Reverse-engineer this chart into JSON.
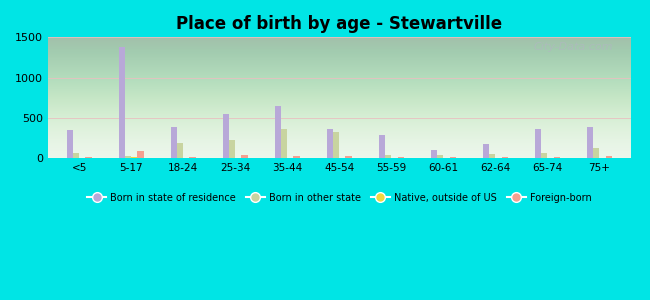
{
  "title": "Place of birth by age - Stewartville",
  "categories": [
    "<5",
    "5-17",
    "18-24",
    "25-34",
    "35-44",
    "45-54",
    "55-59",
    "60-61",
    "62-64",
    "65-74",
    "75+"
  ],
  "series": {
    "Born in state of residence": [
      350,
      1380,
      390,
      550,
      650,
      360,
      285,
      100,
      175,
      360,
      390
    ],
    "Born in other state": [
      70,
      30,
      190,
      230,
      360,
      330,
      45,
      45,
      50,
      65,
      125
    ],
    "Native, outside of US": [
      8,
      12,
      8,
      8,
      8,
      8,
      8,
      8,
      8,
      8,
      8
    ],
    "Foreign-born": [
      18,
      85,
      18,
      40,
      32,
      22,
      18,
      12,
      12,
      18,
      22
    ]
  },
  "colors": {
    "Born in state of residence": "#b8a8d8",
    "Born in other state": "#c8d4a0",
    "Native, outside of US": "#f0d840",
    "Foreign-born": "#f4a090"
  },
  "ylim": [
    0,
    1500
  ],
  "yticks": [
    0,
    500,
    1000,
    1500
  ],
  "background_color": "#00e5e5",
  "watermark": "City-Data.com"
}
